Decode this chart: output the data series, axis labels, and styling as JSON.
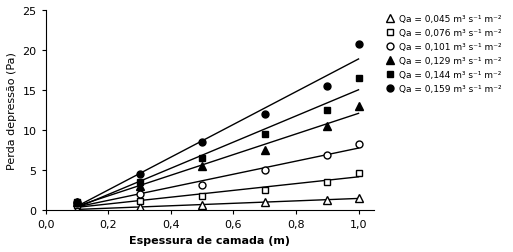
{
  "x_points": [
    0.1,
    0.3,
    0.5,
    0.7,
    0.9,
    1.0
  ],
  "series": [
    {
      "label": "Qa = 0,045 m³ s⁻¹ m⁻²",
      "marker": "^",
      "filled": false,
      "color": "black",
      "y_points": [
        0.2,
        0.4,
        0.7,
        1.0,
        1.3,
        1.6
      ],
      "slope": 1.55,
      "intercept": -0.0
    },
    {
      "label": "Qa = 0,076 m³ s⁻¹ m⁻²",
      "marker": "s",
      "filled": false,
      "color": "black",
      "y_points": [
        0.7,
        1.2,
        1.8,
        2.6,
        3.6,
        4.7
      ],
      "slope": 4.7,
      "intercept": -0.05
    },
    {
      "label": "Qa = 0,101 m³ s⁻¹ m⁻²",
      "marker": "o",
      "filled": false,
      "color": "black",
      "y_points": [
        0.9,
        2.0,
        3.2,
        5.0,
        6.9,
        8.3
      ],
      "slope": 8.5,
      "intercept": -0.05
    },
    {
      "label": "Qa = 0,129 m³ s⁻¹ m⁻²",
      "marker": "^",
      "filled": true,
      "color": "black",
      "y_points": [
        1.0,
        3.0,
        5.5,
        7.5,
        10.5,
        13.0
      ],
      "slope": 13.2,
      "intercept": -0.3
    },
    {
      "label": "Qa = 0,144 m³ s⁻¹ m⁻²",
      "marker": "s",
      "filled": true,
      "color": "black",
      "y_points": [
        1.0,
        3.5,
        6.5,
        9.5,
        12.5,
        16.5
      ],
      "slope": 17.0,
      "intercept": -0.6
    },
    {
      "label": "Qa = 0,159 m³ s⁻¹ m⁻²",
      "marker": "o",
      "filled": true,
      "color": "black",
      "y_points": [
        1.1,
        4.5,
        8.5,
        12.0,
        15.5,
        20.7
      ],
      "slope": 21.0,
      "intercept": -1.0
    }
  ],
  "xlim": [
    0.0,
    1.05
  ],
  "ylim": [
    0,
    25
  ],
  "yticks": [
    0,
    5,
    10,
    15,
    20,
    25
  ],
  "xticks": [
    0.0,
    0.2,
    0.4,
    0.6,
    0.8,
    1.0
  ],
  "xlabel": "Espessura de camada (m)",
  "ylabel": "Perda depressão (Pa)",
  "figsize": [
    5.13,
    2.53
  ],
  "dpi": 100
}
